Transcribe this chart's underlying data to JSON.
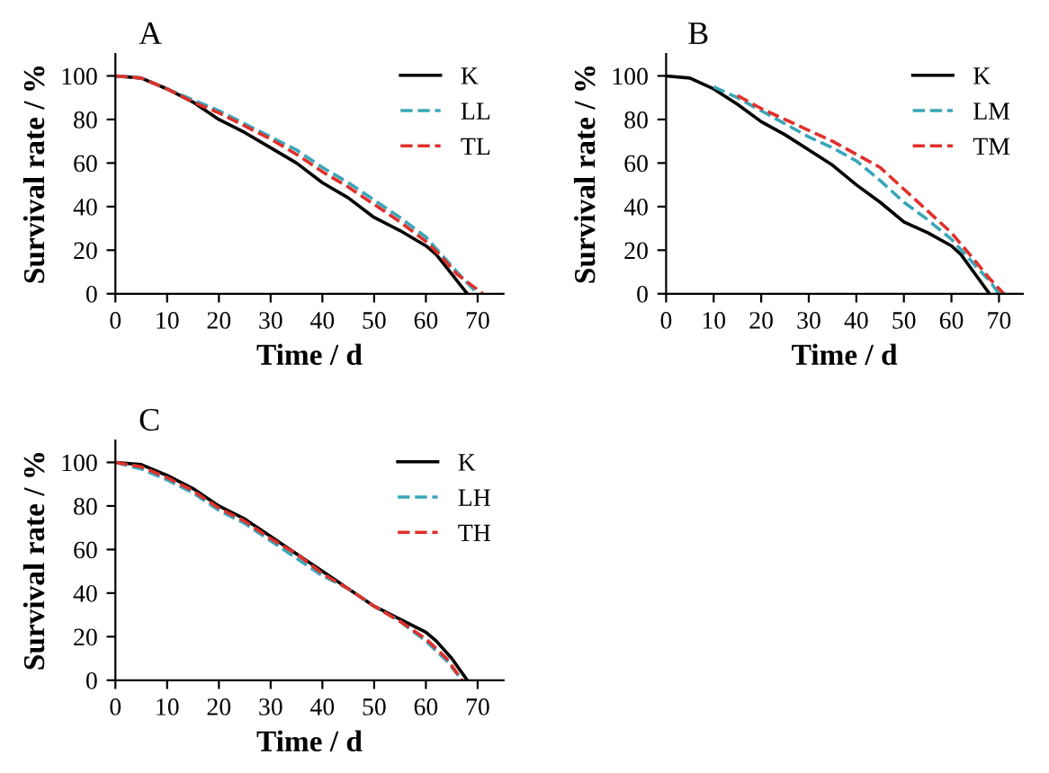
{
  "chart_data": [
    {
      "type": "line",
      "title": "A",
      "xlabel": "Time / d",
      "ylabel": "Survival rate / %",
      "xlim": [
        0,
        75
      ],
      "ylim": [
        0,
        110
      ],
      "xticks": [
        0,
        10,
        20,
        30,
        40,
        50,
        60,
        70
      ],
      "yticks": [
        0,
        20,
        40,
        60,
        80,
        100
      ],
      "legend": "top right",
      "grid": false,
      "series": [
        {
          "name": "K",
          "color": "#000000",
          "line_style": "solid",
          "x": [
            0,
            5,
            10,
            15,
            20,
            25,
            30,
            35,
            40,
            45,
            50,
            55,
            60,
            62,
            65,
            68
          ],
          "values": [
            100,
            99,
            94,
            88,
            80,
            74,
            67,
            60,
            51,
            44,
            35,
            29,
            22,
            18,
            9,
            0
          ]
        },
        {
          "name": "LL",
          "color": "#3aa6b9",
          "line_style": "dashed",
          "x": [
            0,
            5,
            10,
            15,
            20,
            25,
            30,
            35,
            40,
            45,
            50,
            55,
            60,
            63,
            66,
            70
          ],
          "values": [
            100,
            99,
            94,
            89,
            84,
            78,
            72,
            66,
            58,
            51,
            43,
            35,
            26,
            18,
            10,
            0
          ]
        },
        {
          "name": "TL",
          "color": "#e0302a",
          "line_style": "dashed",
          "x": [
            0,
            5,
            10,
            15,
            20,
            25,
            30,
            35,
            40,
            45,
            50,
            55,
            60,
            63,
            66,
            71
          ],
          "values": [
            100,
            99,
            94,
            88,
            83,
            77,
            71,
            64,
            56,
            49,
            41,
            33,
            24,
            17,
            9,
            0
          ]
        }
      ]
    },
    {
      "type": "line",
      "title": "B",
      "xlabel": "Time / d",
      "ylabel": "Survival rate / %",
      "xlim": [
        0,
        75
      ],
      "ylim": [
        0,
        110
      ],
      "xticks": [
        0,
        10,
        20,
        30,
        40,
        50,
        60,
        70
      ],
      "yticks": [
        0,
        20,
        40,
        60,
        80,
        100
      ],
      "legend": "top right",
      "grid": false,
      "series": [
        {
          "name": "K",
          "color": "#000000",
          "line_style": "solid",
          "x": [
            0,
            5,
            10,
            15,
            20,
            25,
            30,
            35,
            40,
            45,
            50,
            55,
            60,
            62,
            65,
            68
          ],
          "values": [
            100,
            99,
            94,
            87,
            79,
            73,
            66,
            59,
            50,
            42,
            33,
            28,
            22,
            18,
            9,
            0
          ]
        },
        {
          "name": "LM",
          "color": "#3aa6b9",
          "line_style": "dashed",
          "x": [
            10,
            15,
            20,
            25,
            30,
            35,
            40,
            45,
            50,
            55,
            60,
            65,
            68,
            70
          ],
          "values": [
            95,
            90,
            84,
            78,
            72,
            67,
            61,
            52,
            42,
            34,
            25,
            13,
            6,
            0
          ]
        },
        {
          "name": "TM",
          "color": "#e0302a",
          "line_style": "dashed",
          "x": [
            15,
            20,
            25,
            30,
            35,
            40,
            45,
            50,
            55,
            60,
            65,
            68,
            71
          ],
          "values": [
            91,
            85,
            80,
            75,
            70,
            64,
            58,
            48,
            38,
            28,
            15,
            7,
            0
          ]
        }
      ]
    },
    {
      "type": "line",
      "title": "C",
      "xlabel": "Time / d",
      "ylabel": "Survival rate / %",
      "xlim": [
        0,
        75
      ],
      "ylim": [
        0,
        110
      ],
      "xticks": [
        0,
        10,
        20,
        30,
        40,
        50,
        60,
        70
      ],
      "yticks": [
        0,
        20,
        40,
        60,
        80,
        100
      ],
      "legend": "top right",
      "grid": false,
      "series": [
        {
          "name": "K",
          "color": "#000000",
          "line_style": "solid",
          "x": [
            0,
            5,
            10,
            15,
            20,
            25,
            30,
            35,
            40,
            45,
            50,
            55,
            60,
            62,
            65,
            68
          ],
          "values": [
            100,
            99,
            94,
            88,
            80,
            74,
            66,
            58,
            50,
            42,
            34,
            28,
            22,
            18,
            10,
            0
          ]
        },
        {
          "name": "LH",
          "color": "#3aa6b9",
          "line_style": "dashed",
          "x": [
            0,
            5,
            10,
            15,
            20,
            25,
            30,
            35,
            40,
            45,
            50,
            55,
            60,
            64,
            67
          ],
          "values": [
            100,
            97,
            92,
            86,
            78,
            72,
            64,
            56,
            48,
            42,
            34,
            27,
            18,
            9,
            0
          ]
        },
        {
          "name": "TH",
          "color": "#e0302a",
          "line_style": "dashed",
          "x": [
            0,
            5,
            10,
            15,
            20,
            25,
            30,
            35,
            40,
            45,
            50,
            55,
            60,
            64,
            67
          ],
          "values": [
            100,
            98,
            93,
            87,
            79,
            73,
            65,
            58,
            49,
            42,
            34,
            27,
            19,
            10,
            0
          ]
        }
      ]
    }
  ]
}
